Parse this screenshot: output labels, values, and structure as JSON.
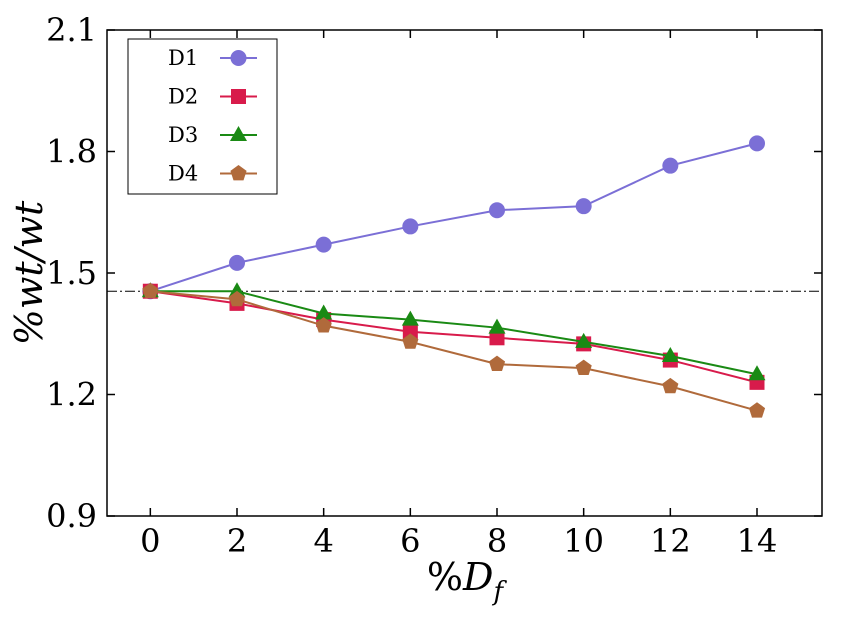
{
  "chart_data": {
    "type": "line",
    "xlabel_prefix": "%",
    "xlabel_main": "D",
    "xlabel_sub": "f",
    "ylabel": "%wt/wt",
    "x": [
      0,
      2,
      4,
      6,
      8,
      10,
      12,
      14
    ],
    "xlim": [
      -1,
      15.5
    ],
    "ylim": [
      0.9,
      2.1
    ],
    "xticks": [
      0,
      2,
      4,
      6,
      8,
      10,
      12,
      14
    ],
    "yticks": [
      0.9,
      1.2,
      1.5,
      1.8,
      2.1
    ],
    "ytick_labels": [
      "0.9",
      "1.2",
      "1.5",
      "1.8",
      "2.1"
    ],
    "reference_line": 1.455,
    "grid": false,
    "legend_position": "top-left",
    "series": [
      {
        "name": "D1",
        "color": "#7b6fd6",
        "marker": "circle",
        "values": [
          1.455,
          1.525,
          1.57,
          1.615,
          1.655,
          1.665,
          1.765,
          1.82
        ]
      },
      {
        "name": "D2",
        "color": "#d81b4b",
        "marker": "square",
        "values": [
          1.455,
          1.425,
          1.385,
          1.355,
          1.34,
          1.325,
          1.285,
          1.23
        ]
      },
      {
        "name": "D3",
        "color": "#1a8a14",
        "marker": "triangle",
        "values": [
          1.455,
          1.455,
          1.4,
          1.385,
          1.365,
          1.33,
          1.295,
          1.25
        ]
      },
      {
        "name": "D4",
        "color": "#b06a3b",
        "marker": "pentagon",
        "values": [
          1.455,
          1.435,
          1.37,
          1.33,
          1.275,
          1.265,
          1.22,
          1.16
        ]
      }
    ]
  }
}
